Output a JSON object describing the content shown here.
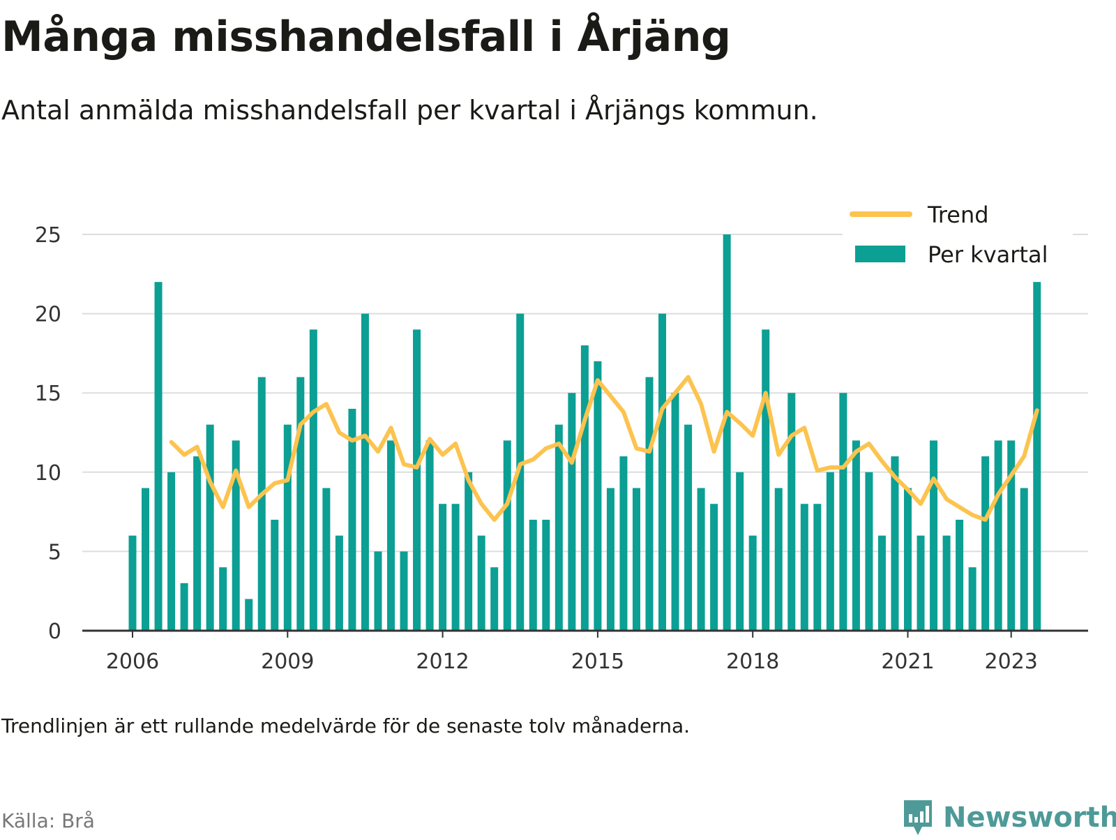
{
  "title": "Många misshandelsfall i Årjäng",
  "subtitle": "Antal anmälda misshandelsfall per kvartal i Årjängs kommun.",
  "footnote": "Trendlinjen är ett rullande medelvärde för de senaste tolv månaderna.",
  "source": "Källa: Brå",
  "brand": "Newsworthy",
  "colors": {
    "bars": "#0c9f94",
    "trend": "#fcc34f",
    "grid": "#dddddd",
    "axis": "#333333",
    "brand": "#4e9a98"
  },
  "chart_data": {
    "type": "bar",
    "x_axis": {
      "type": "date",
      "tick_labels": [
        "2006",
        "2009",
        "2012",
        "2015",
        "2018",
        "2021",
        "2023"
      ]
    },
    "y_axis": {
      "range": [
        0,
        25
      ],
      "ticks": [
        0,
        5,
        10,
        15,
        20,
        25
      ]
    },
    "grid": true,
    "legend_position": "top-right",
    "series": [
      {
        "name": "Per kvartal",
        "type": "bar",
        "x": [
          "2006-01-01",
          "2006-04-01",
          "2006-07-01",
          "2006-10-01",
          "2007-01-01",
          "2007-04-01",
          "2007-07-01",
          "2007-10-01",
          "2008-01-01",
          "2008-04-01",
          "2008-07-01",
          "2008-10-01",
          "2009-01-01",
          "2009-04-01",
          "2009-07-01",
          "2009-10-01",
          "2010-01-01",
          "2010-04-01",
          "2010-07-01",
          "2010-10-01",
          "2011-01-01",
          "2011-04-01",
          "2011-07-01",
          "2011-10-01",
          "2012-01-01",
          "2012-04-01",
          "2012-07-01",
          "2012-10-01",
          "2013-01-01",
          "2013-04-01",
          "2013-07-01",
          "2013-10-01",
          "2014-01-01",
          "2014-04-01",
          "2014-07-01",
          "2014-10-01",
          "2015-01-01",
          "2015-04-01",
          "2015-07-01",
          "2015-10-01",
          "2016-01-01",
          "2016-04-01",
          "2016-07-01",
          "2016-10-01",
          "2017-01-01",
          "2017-04-01",
          "2017-07-01",
          "2017-10-01",
          "2018-01-01",
          "2018-04-01",
          "2018-07-01",
          "2018-10-01",
          "2019-01-01",
          "2019-04-01",
          "2019-07-01",
          "2019-10-01",
          "2020-01-01",
          "2020-04-01",
          "2020-07-01",
          "2020-10-01",
          "2021-01-01",
          "2021-04-01",
          "2021-07-01",
          "2021-10-01",
          "2022-01-01",
          "2022-04-01",
          "2022-07-01",
          "2022-10-01",
          "2023-01-01",
          "2023-04-01",
          "2023-07-01"
        ],
        "values": [
          6,
          9,
          22,
          10,
          3,
          11,
          13,
          4,
          12,
          2,
          16,
          7,
          13,
          16,
          19,
          9,
          6,
          14,
          20,
          5,
          12,
          5,
          19,
          12,
          8,
          8,
          10,
          6,
          4,
          12,
          20,
          7,
          7,
          13,
          15,
          18,
          17,
          9,
          11,
          9,
          16,
          20,
          15,
          13,
          9,
          8,
          25,
          10,
          6,
          19,
          9,
          15,
          8,
          8,
          10,
          15,
          12,
          10,
          6,
          11,
          9,
          6,
          12,
          6,
          7,
          4,
          11,
          12,
          12,
          9,
          22
        ]
      },
      {
        "name": "Trend",
        "type": "line",
        "x": [
          "2006-10-01",
          "2007-01-01",
          "2007-04-01",
          "2007-07-01",
          "2007-10-01",
          "2008-01-01",
          "2008-04-01",
          "2008-07-01",
          "2008-10-01",
          "2009-01-01",
          "2009-04-01",
          "2009-07-01",
          "2009-10-01",
          "2010-01-01",
          "2010-04-01",
          "2010-07-01",
          "2010-10-01",
          "2011-01-01",
          "2011-04-01",
          "2011-07-01",
          "2011-10-01",
          "2012-01-01",
          "2012-04-01",
          "2012-07-01",
          "2012-10-01",
          "2013-01-01",
          "2013-04-01",
          "2013-07-01",
          "2013-10-01",
          "2014-01-01",
          "2014-04-01",
          "2014-07-01",
          "2014-10-01",
          "2015-01-01",
          "2015-04-01",
          "2015-07-01",
          "2015-10-01",
          "2016-01-01",
          "2016-04-01",
          "2016-07-01",
          "2016-10-01",
          "2017-01-01",
          "2017-04-01",
          "2017-07-01",
          "2017-10-01",
          "2018-01-01",
          "2018-04-01",
          "2018-07-01",
          "2018-10-01",
          "2019-01-01",
          "2019-04-01",
          "2019-07-01",
          "2019-10-01",
          "2020-01-01",
          "2020-04-01",
          "2020-07-01",
          "2020-10-01",
          "2021-01-01",
          "2021-04-01",
          "2021-07-01",
          "2021-10-01",
          "2022-01-01",
          "2022-04-01",
          "2022-07-01",
          "2022-10-01",
          "2023-01-01",
          "2023-04-01",
          "2023-07-01"
        ],
        "values": [
          11.9,
          11.1,
          11.6,
          9.4,
          7.8,
          10.1,
          7.8,
          8.6,
          9.3,
          9.5,
          13.0,
          13.8,
          14.3,
          12.5,
          12.0,
          12.3,
          11.3,
          12.8,
          10.5,
          10.3,
          12.1,
          11.1,
          11.8,
          9.5,
          8.0,
          7.0,
          8.0,
          10.5,
          10.8,
          11.5,
          11.8,
          10.6,
          13.3,
          15.8,
          14.8,
          13.8,
          11.5,
          11.3,
          14.0,
          15.0,
          16.0,
          14.3,
          11.3,
          13.8,
          13.1,
          12.3,
          15.0,
          11.1,
          12.3,
          12.8,
          10.1,
          10.3,
          10.3,
          11.3,
          11.8,
          10.7,
          9.7,
          8.9,
          8.0,
          9.6,
          8.3,
          7.8,
          7.3,
          7.0,
          8.6,
          9.8,
          11.0,
          13.9
        ]
      }
    ]
  }
}
